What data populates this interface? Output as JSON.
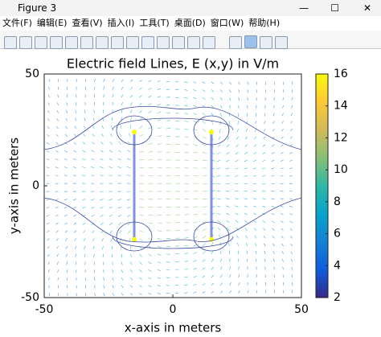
{
  "window": {
    "title": "Figure 3",
    "menu": [
      "文件(F)",
      "编辑(E)",
      "查看(V)",
      "插入(I)",
      "工具(T)",
      "桌面(D)",
      "窗口(W)",
      "帮助(H)"
    ]
  },
  "chart_data": {
    "type": "quiver",
    "title": "Electric field Lines, E (x,y) in V/m",
    "x_label": "x-axis in meters",
    "y_label": "y-axis in meters",
    "xlim": [
      -50,
      50
    ],
    "ylim": [
      -50,
      50
    ],
    "xticks": [
      -50,
      0,
      50
    ],
    "yticks": [
      -50,
      0,
      50
    ],
    "plates": [
      {
        "x": -15,
        "y": [
          -24,
          24
        ]
      },
      {
        "x": 15,
        "y": [
          -24,
          24
        ]
      }
    ],
    "colorbar": {
      "lim": [
        2,
        16
      ],
      "ticks": [
        2,
        4,
        6,
        8,
        10,
        12,
        14,
        16
      ]
    },
    "colormap": [
      "#352a87",
      "#0f5cdd",
      "#1481d6",
      "#06a4ca",
      "#2eb7a4",
      "#87bf77",
      "#d1bb59",
      "#fec832",
      "#f9fb0e"
    ]
  }
}
